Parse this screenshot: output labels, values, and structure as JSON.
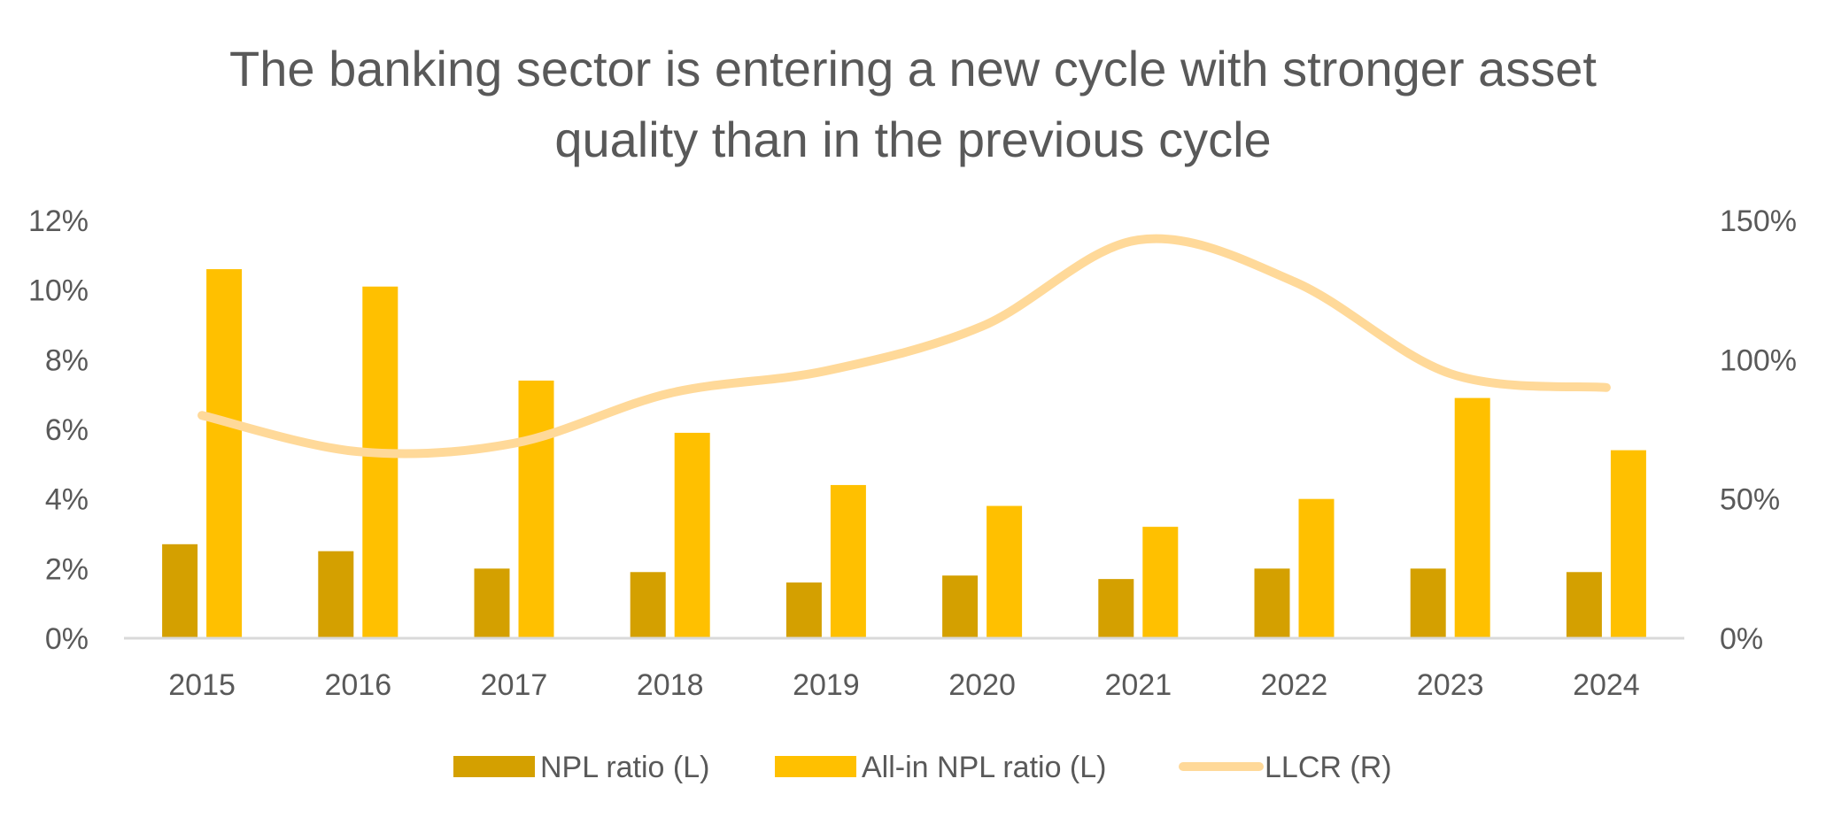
{
  "chart_data": {
    "type": "bar",
    "title_lines": [
      "The banking sector is entering a new cycle with stronger asset",
      "quality than in the previous cycle"
    ],
    "categories": [
      "2015",
      "2016",
      "2017",
      "2018",
      "2019",
      "2020",
      "2021",
      "2022",
      "2023",
      "2024"
    ],
    "series": [
      {
        "name": "NPL ratio (L)",
        "type": "bar",
        "axis": "left",
        "color": "#D4A000",
        "values": [
          2.7,
          2.5,
          2.0,
          1.9,
          1.6,
          1.8,
          1.7,
          2.0,
          2.0,
          1.9
        ]
      },
      {
        "name": "All-in NPL ratio (L)",
        "type": "bar",
        "axis": "left",
        "color": "#FFC000",
        "values": [
          10.6,
          10.1,
          7.4,
          5.9,
          4.4,
          3.8,
          3.2,
          4.0,
          6.9,
          5.4
        ]
      },
      {
        "name": "LLCR (R)",
        "type": "line",
        "smooth": true,
        "axis": "right",
        "color": "#FFD999",
        "values": [
          80,
          67,
          70,
          88,
          96,
          112,
          143,
          128,
          95,
          90
        ]
      }
    ],
    "left_axis": {
      "min": 0,
      "max": 12,
      "ticks": [
        0,
        2,
        4,
        6,
        8,
        10,
        12
      ],
      "tick_labels": [
        "0%",
        "2%",
        "4%",
        "6%",
        "8%",
        "10%",
        "12%"
      ]
    },
    "right_axis": {
      "min": 0,
      "max": 150,
      "ticks": [
        0,
        50,
        100,
        150
      ],
      "tick_labels": [
        "0%",
        "50%",
        "100%",
        "150%"
      ]
    },
    "grid": false,
    "legend_position": "bottom"
  }
}
